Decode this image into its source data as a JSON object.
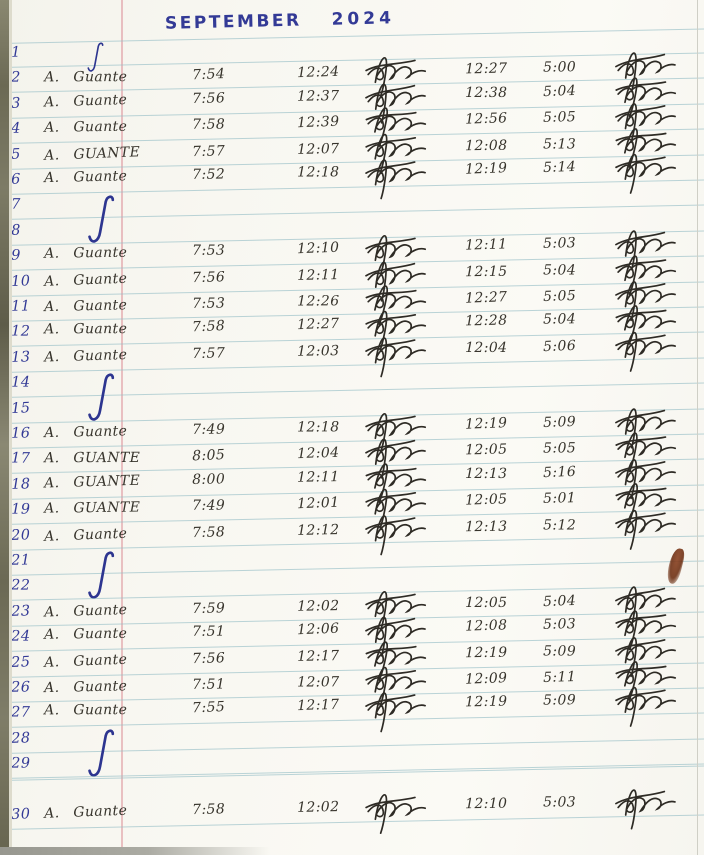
{
  "title": {
    "month": "SEPTEMBER",
    "year": "2024"
  },
  "ink": {
    "blue": "#333a96",
    "black": "#37342c",
    "rule_line": "#96bec6",
    "margin_line": "#d87d87"
  },
  "glyphs": {
    "day_off_mark": "long-blue-checkmark",
    "signature": "handwritten-initials-scribble"
  },
  "rows": [
    {
      "day": "1",
      "type": "check"
    },
    {
      "day": "2",
      "type": "entry",
      "name": "A. Guante",
      "time_in": "7:54",
      "lunch_out": "12:24",
      "lunch_in": "12:27",
      "time_out": "5:00"
    },
    {
      "day": "3",
      "type": "entry",
      "name": "A. Guante",
      "time_in": "7:56",
      "lunch_out": "12:37",
      "lunch_in": "12:38",
      "time_out": "5:04"
    },
    {
      "day": "4",
      "type": "entry",
      "name": "A. Guante",
      "time_in": "7:58",
      "lunch_out": "12:39",
      "lunch_in": "12:56",
      "time_out": "5:05"
    },
    {
      "day": "5",
      "type": "entry",
      "name": "A. GUANTE",
      "time_in": "7:57",
      "lunch_out": "12:07",
      "lunch_in": "12:08",
      "time_out": "5:13"
    },
    {
      "day": "6",
      "type": "entry",
      "name": "A. Guante",
      "time_in": "7:52",
      "lunch_out": "12:18",
      "lunch_in": "12:19",
      "time_out": "5:14"
    },
    {
      "day": "7",
      "type": "check"
    },
    {
      "day": "8",
      "type": "blank"
    },
    {
      "day": "9",
      "type": "entry",
      "name": "A. Guante",
      "time_in": "7:53",
      "lunch_out": "12:10",
      "lunch_in": "12:11",
      "time_out": "5:03"
    },
    {
      "day": "10",
      "type": "entry",
      "name": "A. Guante",
      "time_in": "7:56",
      "lunch_out": "12:11",
      "lunch_in": "12:15",
      "time_out": "5:04"
    },
    {
      "day": "11",
      "type": "entry",
      "name": "A. Guante",
      "time_in": "7:53",
      "lunch_out": "12:26",
      "lunch_in": "12:27",
      "time_out": "5:05"
    },
    {
      "day": "12",
      "type": "entry",
      "name": "A. Guante",
      "time_in": "7:58",
      "lunch_out": "12:27",
      "lunch_in": "12:28",
      "time_out": "5:04"
    },
    {
      "day": "13",
      "type": "entry",
      "name": "A. Guante",
      "time_in": "7:57",
      "lunch_out": "12:03",
      "lunch_in": "12:04",
      "time_out": "5:06"
    },
    {
      "day": "14",
      "type": "check"
    },
    {
      "day": "15",
      "type": "blank"
    },
    {
      "day": "16",
      "type": "entry",
      "name": "A. Guante",
      "time_in": "7:49",
      "lunch_out": "12:18",
      "lunch_in": "12:19",
      "time_out": "5:09"
    },
    {
      "day": "17",
      "type": "entry",
      "name": "A. GUANTE",
      "time_in": "8:05",
      "lunch_out": "12:04",
      "lunch_in": "12:05",
      "time_out": "5:05"
    },
    {
      "day": "18",
      "type": "entry",
      "name": "A. GUANTE",
      "time_in": "8:00",
      "lunch_out": "12:11",
      "lunch_in": "12:13",
      "time_out": "5:16"
    },
    {
      "day": "19",
      "type": "entry",
      "name": "A. GUANTE",
      "time_in": "7:49",
      "lunch_out": "12:01",
      "lunch_in": "12:05",
      "time_out": "5:01"
    },
    {
      "day": "20",
      "type": "entry",
      "name": "A. Guante",
      "time_in": "7:58",
      "lunch_out": "12:12",
      "lunch_in": "12:13",
      "time_out": "5:12"
    },
    {
      "day": "21",
      "type": "check"
    },
    {
      "day": "22",
      "type": "blank"
    },
    {
      "day": "23",
      "type": "entry",
      "name": "A. Guante",
      "time_in": "7:59",
      "lunch_out": "12:02",
      "lunch_in": "12:05",
      "time_out": "5:04"
    },
    {
      "day": "24",
      "type": "entry",
      "name": "A. Guante",
      "time_in": "7:51",
      "lunch_out": "12:06",
      "lunch_in": "12:08",
      "time_out": "5:03"
    },
    {
      "day": "25",
      "type": "entry",
      "name": "A. Guante",
      "time_in": "7:56",
      "lunch_out": "12:17",
      "lunch_in": "12:19",
      "time_out": "5:09"
    },
    {
      "day": "26",
      "type": "entry",
      "name": "A. Guante",
      "time_in": "7:51",
      "lunch_out": "12:07",
      "lunch_in": "12:09",
      "time_out": "5:11"
    },
    {
      "day": "27",
      "type": "entry",
      "name": "A. Guante",
      "time_in": "7:55",
      "lunch_out": "12:17",
      "lunch_in": "12:19",
      "time_out": "5:09"
    },
    {
      "day": "28",
      "type": "check"
    },
    {
      "day": "29",
      "type": "blank"
    },
    {
      "day": "30",
      "type": "entry",
      "name": "A. Guante",
      "time_in": "7:58",
      "lunch_out": "12:02",
      "lunch_in": "12:10",
      "time_out": "5:03"
    }
  ]
}
